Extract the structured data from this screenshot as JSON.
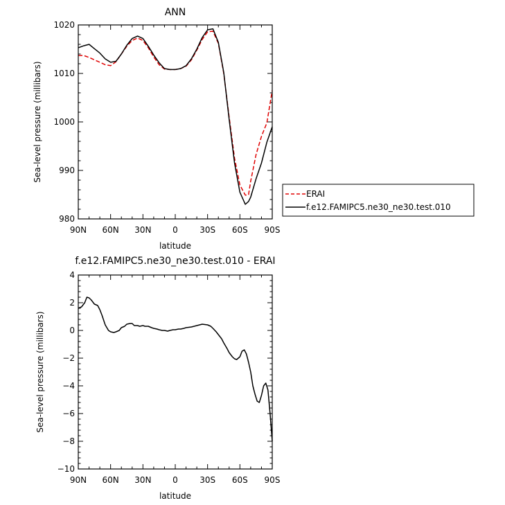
{
  "chart_data": [
    {
      "type": "line",
      "title": "ANN",
      "xlabel": "latitude",
      "ylabel": "Sea-level pressure (millibars)",
      "xlim": [
        90,
        -90
      ],
      "ylim": [
        980,
        1020
      ],
      "x_ticks": [
        90,
        60,
        30,
        0,
        -30,
        -60,
        -90
      ],
      "x_tick_labels": [
        "90N",
        "60N",
        "30N",
        "0",
        "30S",
        "60S",
        "90S"
      ],
      "y_ticks": [
        980,
        990,
        1000,
        1010,
        1020
      ],
      "y_tick_labels": [
        "980",
        "990",
        "1000",
        "1010",
        "1020"
      ],
      "legend_position": "right-bottom",
      "series": [
        {
          "name": "ERAI",
          "color": "#e00000",
          "style": "dashed",
          "x": [
            90,
            85,
            80,
            75,
            70,
            65,
            60,
            55,
            50,
            45,
            40,
            35,
            30,
            25,
            20,
            15,
            10,
            5,
            0,
            -5,
            -10,
            -15,
            -20,
            -25,
            -30,
            -35,
            -40,
            -45,
            -50,
            -55,
            -60,
            -65,
            -68,
            -70,
            -75,
            -80,
            -85,
            -90
          ],
          "y": [
            1013.7,
            1013.7,
            1013.3,
            1012.8,
            1012.3,
            1011.8,
            1011.6,
            1012.4,
            1014.0,
            1015.6,
            1016.8,
            1017.3,
            1016.8,
            1015.3,
            1013.4,
            1011.8,
            1010.9,
            1010.8,
            1010.8,
            1011.0,
            1011.5,
            1012.8,
            1014.8,
            1017.0,
            1018.6,
            1018.7,
            1016.2,
            1010.0,
            1001.0,
            992.5,
            987.0,
            984.9,
            985.0,
            987.8,
            993.3,
            997.0,
            999.8,
            1006.5
          ]
        },
        {
          "name": "f.e12.FAMIPC5.ne30_ne30.test.010",
          "color": "#000000",
          "style": "solid",
          "x": [
            90,
            85,
            80,
            75,
            70,
            65,
            60,
            55,
            50,
            45,
            40,
            35,
            30,
            25,
            20,
            15,
            10,
            5,
            0,
            -5,
            -10,
            -15,
            -20,
            -25,
            -30,
            -35,
            -40,
            -45,
            -50,
            -55,
            -60,
            -65,
            -68,
            -70,
            -75,
            -80,
            -85,
            -90
          ],
          "y": [
            1015.3,
            1015.7,
            1016.0,
            1015.1,
            1014.2,
            1013.0,
            1012.3,
            1012.5,
            1014.0,
            1015.8,
            1017.2,
            1017.7,
            1017.2,
            1015.6,
            1013.8,
            1012.2,
            1011.0,
            1010.8,
            1010.8,
            1011.0,
            1011.6,
            1013.0,
            1015.0,
            1017.4,
            1019.0,
            1019.2,
            1016.4,
            1010.2,
            1000.5,
            991.5,
            985.5,
            983.0,
            983.6,
            984.5,
            988.3,
            991.5,
            995.8,
            999.0
          ]
        }
      ]
    },
    {
      "type": "line",
      "title": "f.e12.FAMIPC5.ne30_ne30.test.010 - ERAI",
      "xlabel": "latitude",
      "ylabel": "Sea-level pressure (millibars)",
      "xlim": [
        90,
        -90
      ],
      "ylim": [
        -10,
        4
      ],
      "x_ticks": [
        90,
        60,
        30,
        0,
        -30,
        -60,
        -90
      ],
      "x_tick_labels": [
        "90N",
        "60N",
        "30N",
        "0",
        "30S",
        "60S",
        "90S"
      ],
      "y_ticks": [
        -10,
        -8,
        -6,
        -4,
        -2,
        0,
        2,
        4
      ],
      "y_tick_labels": [
        "−10",
        "−8",
        "−6",
        "−4",
        "−2",
        "0",
        "2",
        "4"
      ],
      "series": [
        {
          "name": "",
          "color": "#000000",
          "style": "solid",
          "x": [
            90,
            87,
            84,
            82,
            80,
            78,
            75,
            72,
            70,
            68,
            65,
            62,
            60,
            57,
            55,
            52,
            50,
            47,
            45,
            42,
            40,
            38,
            35,
            33,
            30,
            28,
            25,
            22,
            20,
            17,
            15,
            12,
            10,
            7,
            5,
            2,
            0,
            -3,
            -5,
            -8,
            -10,
            -15,
            -20,
            -25,
            -30,
            -33,
            -35,
            -38,
            -40,
            -43,
            -45,
            -48,
            -50,
            -53,
            -55,
            -57,
            -60,
            -62,
            -64,
            -66,
            -68,
            -70,
            -72,
            -74,
            -76,
            -78,
            -80,
            -82,
            -84,
            -86,
            -88,
            -90
          ],
          "y": [
            1.6,
            1.7,
            2.0,
            2.4,
            2.35,
            2.2,
            1.9,
            1.8,
            1.5,
            1.1,
            0.4,
            0.0,
            -0.1,
            -0.15,
            -0.1,
            0.0,
            0.2,
            0.3,
            0.45,
            0.5,
            0.5,
            0.35,
            0.35,
            0.3,
            0.35,
            0.3,
            0.3,
            0.2,
            0.15,
            0.1,
            0.05,
            0.0,
            0.0,
            -0.05,
            0.0,
            0.05,
            0.05,
            0.1,
            0.1,
            0.15,
            0.2,
            0.25,
            0.35,
            0.45,
            0.4,
            0.3,
            0.15,
            -0.1,
            -0.3,
            -0.6,
            -0.9,
            -1.3,
            -1.6,
            -1.9,
            -2.05,
            -2.1,
            -1.9,
            -1.5,
            -1.4,
            -1.7,
            -2.3,
            -3.0,
            -4.0,
            -4.6,
            -5.1,
            -5.2,
            -4.7,
            -4.0,
            -3.8,
            -4.3,
            -6.0,
            -8.0
          ]
        }
      ]
    }
  ]
}
